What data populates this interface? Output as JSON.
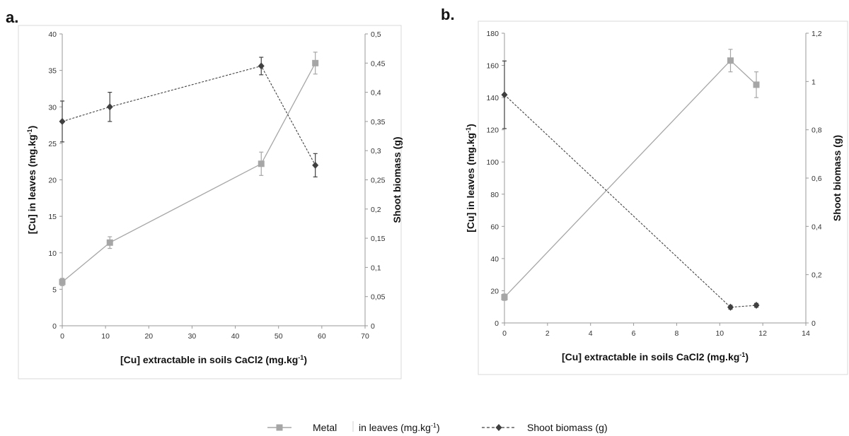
{
  "panels": [
    {
      "label": "a."
    },
    {
      "label": "b."
    }
  ],
  "chart_data": [
    {
      "type": "line",
      "panel": "a.",
      "xlabel": "[Cu] extractable in soils CaCl2 (mg.kg-1)",
      "ylabel_left": "[Cu] in leaves (mg.kg-1)",
      "ylabel_right": "Shoot biomass (g)",
      "xlim": [
        0,
        70
      ],
      "ylim_left": [
        0,
        40
      ],
      "ylim_right": [
        0,
        0.5
      ],
      "x_ticks": [
        "0",
        "10",
        "20",
        "30",
        "40",
        "50",
        "60",
        "70"
      ],
      "y_left_ticks": [
        "0",
        "5",
        "10",
        "15",
        "20",
        "25",
        "30",
        "35",
        "40"
      ],
      "y_right_ticks": [
        "0",
        "0,05",
        "0,1",
        "0,15",
        "0,2",
        "0,25",
        "0,3",
        "0,35",
        "0,4",
        "0,45",
        "0,5"
      ],
      "series": [
        {
          "name": "Metal in leaves (mg.kg-1)",
          "axis": "left",
          "marker": "square",
          "color": "#a6a6a6",
          "dash": "solid",
          "x": [
            0,
            11,
            46,
            58.5
          ],
          "y": [
            6,
            11.4,
            22.2,
            36
          ],
          "err": [
            0.5,
            0.8,
            1.6,
            1.5
          ]
        },
        {
          "name": "Shoot biomass (g)",
          "axis": "right",
          "marker": "diamond",
          "color": "#404040",
          "dash": "dashed",
          "x": [
            0,
            11,
            46,
            58.5
          ],
          "y": [
            0.35,
            0.375,
            0.445,
            0.275
          ],
          "err": [
            0.035,
            0.025,
            0.015,
            0.02
          ]
        }
      ]
    },
    {
      "type": "line",
      "panel": "b.",
      "xlabel": "[Cu] extractable in soils CaCl2 (mg.kg-1)",
      "ylabel_left": "[Cu] in leaves (mg.kg-1)",
      "ylabel_right": "Shoot biomass (g)",
      "xlim": [
        0,
        14
      ],
      "ylim_left": [
        0,
        180
      ],
      "ylim_right": [
        0,
        1.2
      ],
      "x_ticks": [
        "0",
        "2",
        "4",
        "6",
        "8",
        "10",
        "12",
        "14"
      ],
      "y_left_ticks": [
        "0",
        "20",
        "40",
        "60",
        "80",
        "100",
        "120",
        "140",
        "160",
        "180"
      ],
      "y_right_ticks": [
        "0",
        "0,2",
        "0,4",
        "0,6",
        "0,8",
        "1",
        "1,2"
      ],
      "series": [
        {
          "name": "Metal in leaves (mg.kg-1)",
          "axis": "left",
          "marker": "square",
          "color": "#a6a6a6",
          "dash": "solid",
          "x": [
            0,
            10.5,
            11.7
          ],
          "y": [
            16,
            163,
            148
          ],
          "err": [
            2,
            7,
            8
          ]
        },
        {
          "name": "Shoot biomass (g)",
          "axis": "right",
          "marker": "diamond",
          "color": "#404040",
          "dash": "dashed",
          "x": [
            0,
            10.5,
            11.7
          ],
          "y": [
            0.945,
            0.065,
            0.073
          ],
          "err": [
            0.14,
            0.008,
            0.008
          ]
        }
      ]
    }
  ],
  "legend": {
    "metal_prefix": "Metal",
    "metal_suffix": "in leaves (mg.kg",
    "metal_sup": "-1",
    "metal_close": ")",
    "biomass": "Shoot biomass (g)"
  }
}
